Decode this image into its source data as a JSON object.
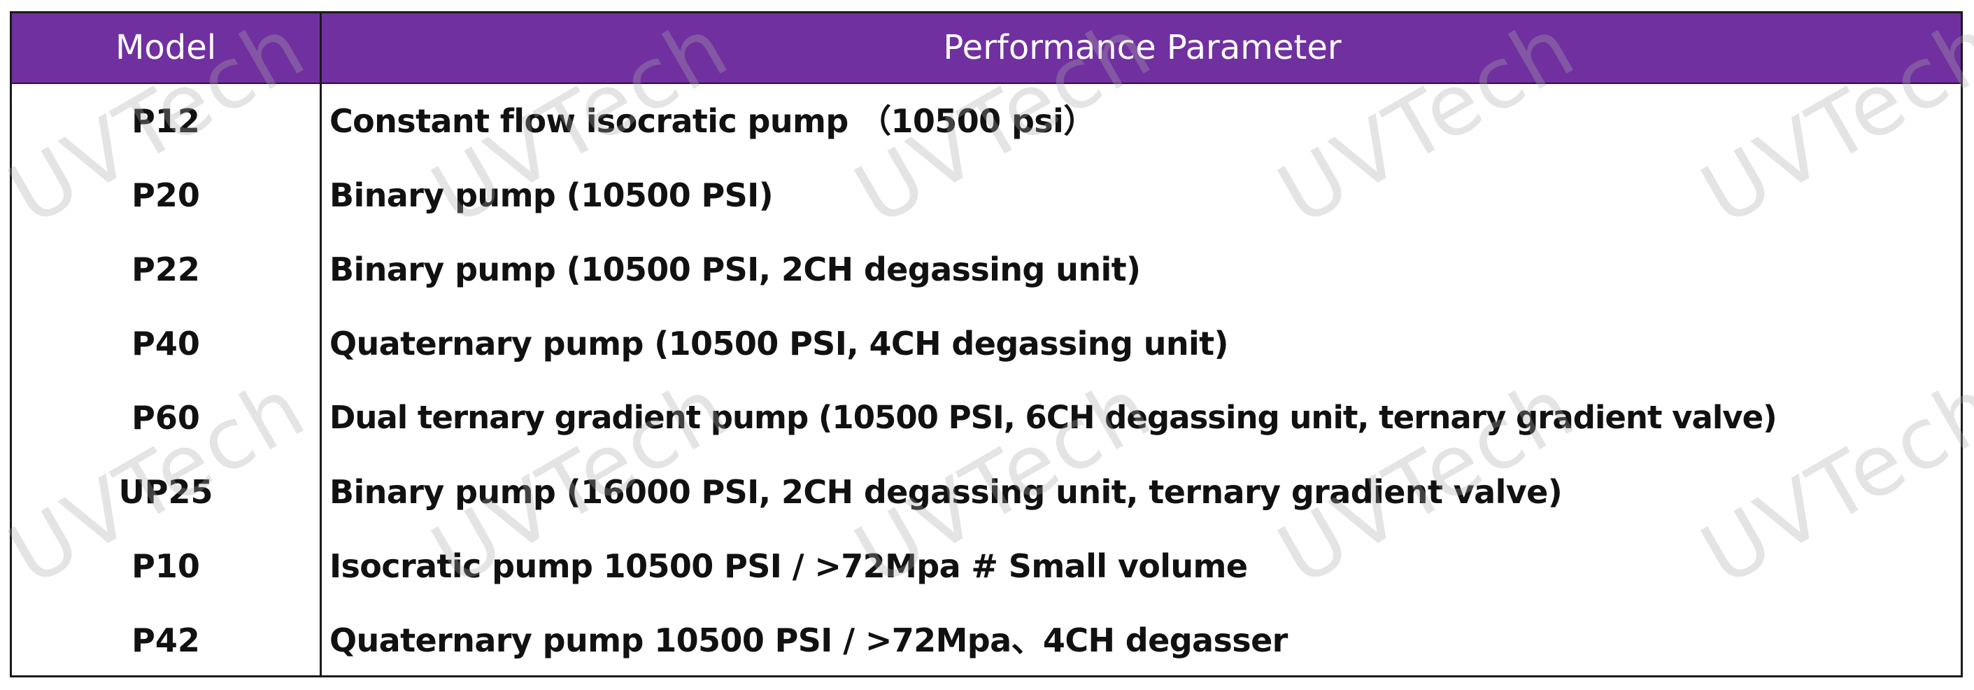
{
  "table": {
    "header": {
      "model": "Model",
      "parameter": "Performance Parameter"
    },
    "rows": [
      {
        "model": "P12",
        "parameter": "Constant flow isocratic pump  （10500 psi）"
      },
      {
        "model": "P20",
        "parameter": "Binary pump (10500 PSI)"
      },
      {
        "model": "P22",
        "parameter": "Binary pump (10500 PSI, 2CH degassing unit)"
      },
      {
        "model": "P40",
        "parameter": "Quaternary pump (10500 PSI, 4CH degassing unit)"
      },
      {
        "model": "P60",
        "parameter": "Dual ternary gradient pump (10500 PSI, 6CH degassing unit, ternary gradient valve)"
      },
      {
        "model": "UP25",
        "parameter": "Binary pump (16000 PSI, 2CH degassing unit, ternary gradient valve)"
      },
      {
        "model": "P10",
        "parameter": "Isocratic pump  10500 PSI / >72Mpa # Small volume"
      },
      {
        "model": "P42",
        "parameter": "Quaternary pump 10500 PSI / >72Mpa、4CH degasser"
      }
    ]
  },
  "watermark": {
    "text": "UVTech"
  },
  "colors": {
    "header_background": "#7030a0",
    "header_text": "#ffffff",
    "border": "#1a1a1a",
    "watermark": "#aaaaaa"
  }
}
